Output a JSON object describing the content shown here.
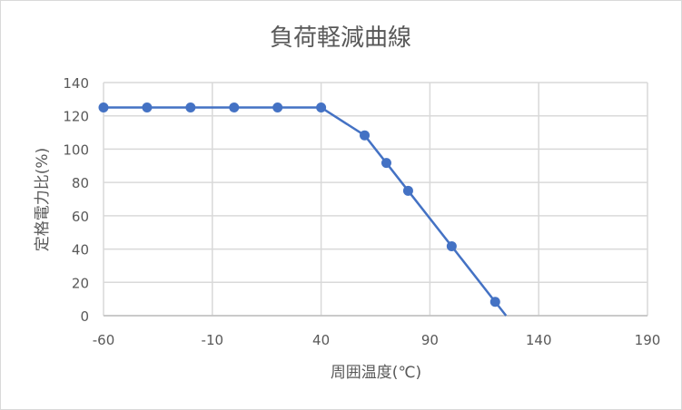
{
  "chart_data": {
    "type": "line",
    "title": "負荷軽減曲線",
    "xlabel": "周囲温度(℃)",
    "ylabel": "定格電力比(%)",
    "xlim": [
      -60,
      190
    ],
    "ylim": [
      0,
      140
    ],
    "xticks": [
      -60,
      -10,
      40,
      90,
      140,
      190
    ],
    "yticks": [
      0,
      20,
      40,
      60,
      80,
      100,
      120,
      140
    ],
    "grid": true,
    "legend": "none",
    "series": [
      {
        "color": "#4472C4",
        "markers": true,
        "x": [
          -60,
          -40,
          -20,
          0,
          20,
          40,
          60,
          70,
          80,
          100,
          120
        ],
        "y": [
          125,
          125,
          125,
          125,
          125,
          125,
          108.3,
          91.7,
          75,
          41.7,
          8.3
        ],
        "line_end": [
          125,
          0
        ]
      }
    ],
    "colors": {
      "grid": "#d9d9d9",
      "text": "#595959",
      "series": "#4472C4"
    }
  }
}
